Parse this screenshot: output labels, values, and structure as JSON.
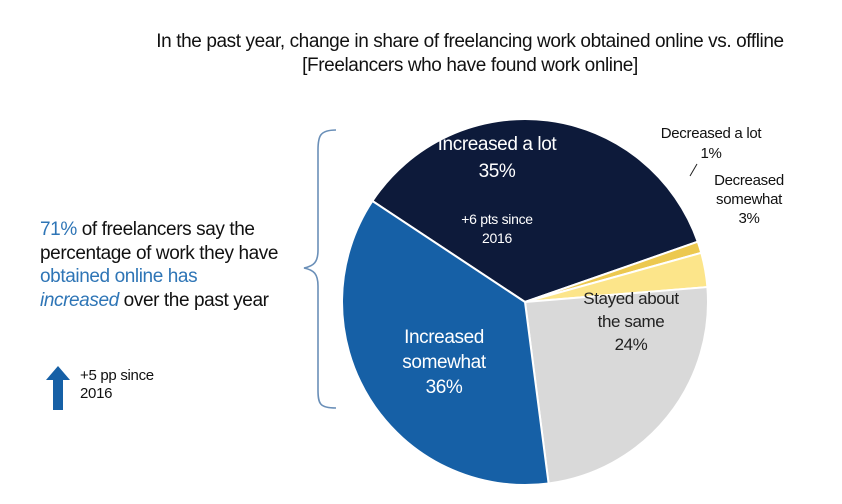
{
  "title": {
    "line1": "In the past year, change in share of freelancing work obtained online vs. offline",
    "line2": "[Freelancers who have found work online]"
  },
  "callout": {
    "percent": "71%",
    "text1": " of freelancers say the percentage of work they have ",
    "obtained": "obtained online has ",
    "increased": "increased",
    "text2": " over the past year"
  },
  "since": {
    "line1": "+5 pp since",
    "line2": "2016"
  },
  "colors": {
    "increased_a_lot": "#0D1A3A",
    "increased_somewhat": "#1660A6",
    "stayed_about_same": "#D9D9D9",
    "decreased_somewhat": "#FCE58A",
    "decreased_a_lot": "#ECC84F",
    "accent_blue": "#2E75B6",
    "arrow": "#1660A6",
    "bracket": "#6A8FB8"
  },
  "icons": {
    "arrow": "up-arrow-icon",
    "bracket": "curly-brace-icon"
  },
  "chart_data": {
    "type": "pie",
    "slices": [
      {
        "label_lines": [
          "Increased a lot"
        ],
        "value": 35,
        "value_label": "35%",
        "note_lines": [
          "+6 pts since",
          "2016"
        ]
      },
      {
        "label_lines": [
          "Decreased a lot"
        ],
        "value": 1,
        "value_label": "1%"
      },
      {
        "label_lines": [
          "Decreased",
          "somewhat"
        ],
        "value": 3,
        "value_label": "3%"
      },
      {
        "label_lines": [
          "Stayed about",
          "the same"
        ],
        "value": 24,
        "value_label": "24%"
      },
      {
        "label_lines": [
          "Increased",
          "somewhat"
        ],
        "value": 36,
        "value_label": "36%"
      }
    ]
  }
}
